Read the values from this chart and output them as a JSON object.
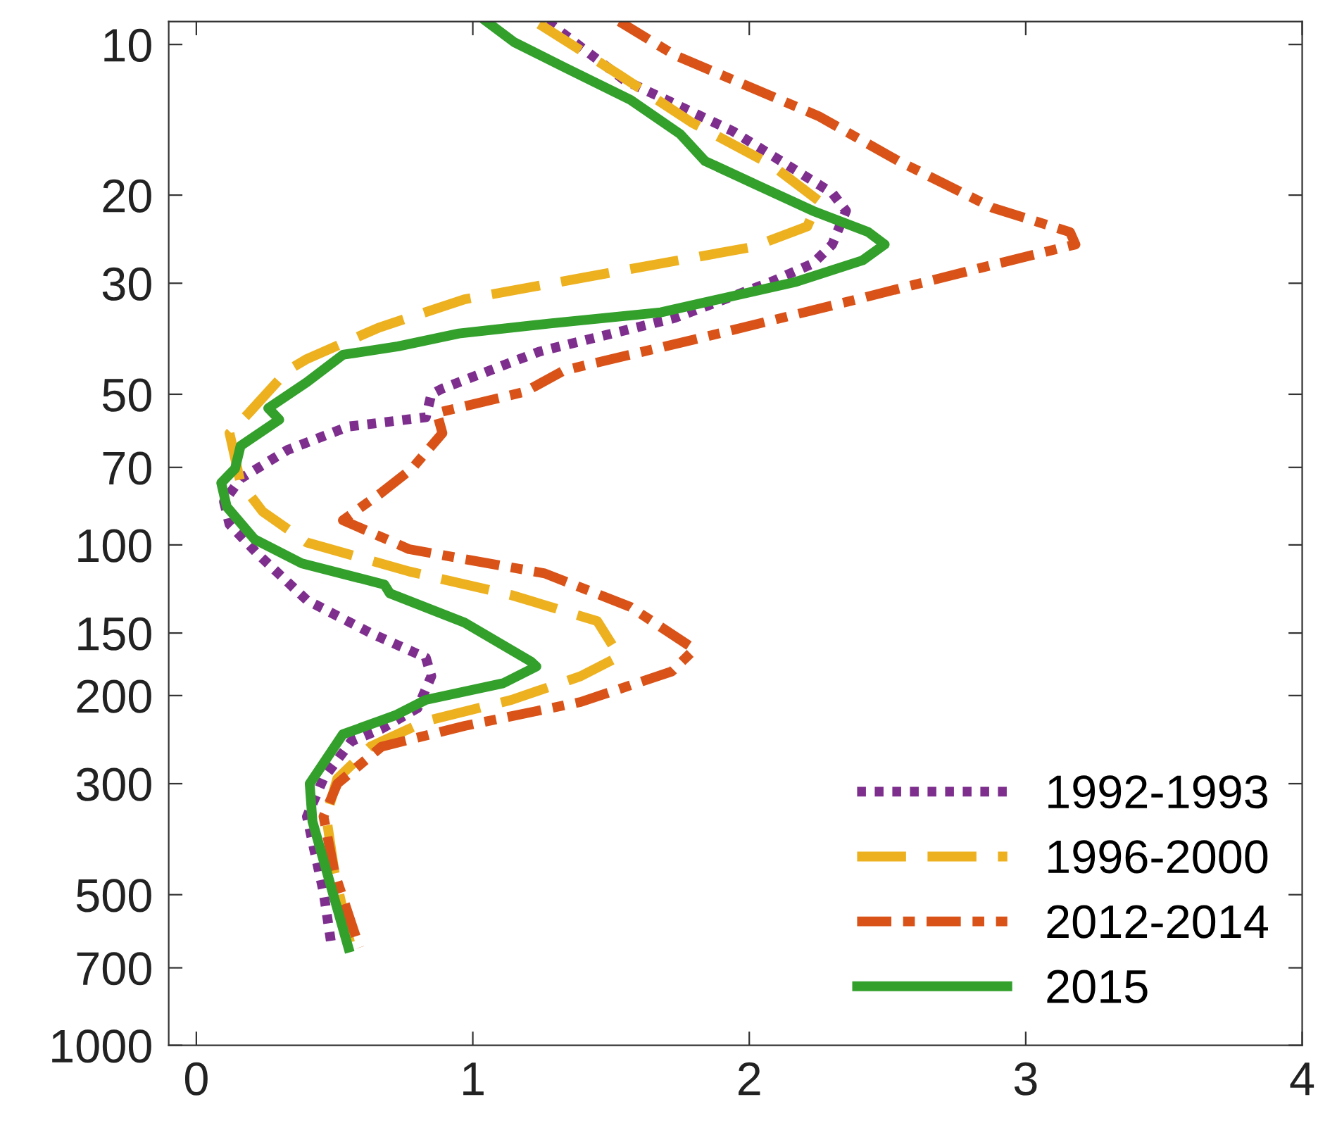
{
  "chart_data": {
    "type": "line",
    "log": "y",
    "xlim": [
      -0.1,
      4
    ],
    "ylim": [
      1000,
      9
    ],
    "xticks": [
      0,
      1,
      2,
      3,
      4
    ],
    "yticks": [
      10,
      20,
      30,
      50,
      70,
      100,
      150,
      200,
      300,
      500,
      700,
      1000
    ],
    "grid": false,
    "legend": "bottom right",
    "marker": "none",
    "series": [
      {
        "name": "1992-1993",
        "color": "#7e2f8e",
        "line_style": "dotted",
        "x": [
          1.27,
          1.55,
          1.94,
          2.3,
          2.35,
          2.3,
          2.23,
          2.08,
          1.73,
          1.24,
          0.89,
          0.85,
          0.83,
          0.55,
          0.33,
          0.16,
          0.1,
          0.12,
          0.22,
          0.4,
          0.63,
          0.83,
          0.85,
          0.8,
          0.67,
          0.56,
          0.46,
          0.4,
          0.46,
          0.49
        ],
        "values": [
          9,
          11.8,
          14.9,
          19.8,
          21.5,
          25.1,
          27.4,
          29.8,
          35.2,
          41.1,
          48.7,
          50,
          55.6,
          58,
          64.6,
          73.7,
          82,
          91,
          104,
          129,
          150,
          168,
          183,
          212,
          233,
          247,
          293,
          349,
          494,
          638
        ]
      },
      {
        "name": "1996-2000",
        "color": "#edb120",
        "line_style": "dashed",
        "x": [
          1.24,
          1.53,
          1.79,
          2.08,
          2.25,
          2.21,
          2.01,
          1.57,
          0.97,
          0.66,
          0.4,
          0.33,
          0.19,
          0.12,
          0.16,
          0.24,
          0.4,
          0.77,
          1.14,
          1.45,
          1.53,
          1.39,
          1.14,
          0.83,
          0.63,
          0.51,
          0.47,
          0.5,
          0.56
        ],
        "values": [
          9.1,
          11.5,
          14.3,
          17.4,
          20.5,
          23.1,
          25.4,
          28.1,
          32.3,
          36.8,
          42.5,
          44.8,
          54.5,
          59.8,
          75.2,
          85.8,
          98.9,
          113,
          126,
          142,
          167,
          183,
          204,
          225,
          253,
          293,
          349,
          452,
          638
        ]
      },
      {
        "name": "2012-2014",
        "color": "#d95319",
        "line_style": "dashdot",
        "x": [
          1.53,
          1.73,
          2.25,
          2.54,
          2.88,
          3.16,
          3.18,
          2.9,
          2.39,
          1.84,
          1.33,
          1.19,
          0.87,
          0.89,
          0.78,
          0.67,
          0.53,
          0.77,
          1.26,
          1.57,
          1.79,
          1.8,
          1.72,
          1.39,
          0.97,
          0.67,
          0.51,
          0.46,
          0.5,
          0.59
        ],
        "values": [
          9,
          10.5,
          13.9,
          17.1,
          21.2,
          23.7,
          25.1,
          27.4,
          32.3,
          38.4,
          44.8,
          49.4,
          54.5,
          59.8,
          70.4,
          78.6,
          89.3,
          102,
          114,
          133,
          160,
          162,
          179,
          206,
          230,
          253,
          300,
          349,
          452,
          638
        ]
      },
      {
        "name": "2015",
        "color": "#33a02c",
        "line_style": "solid",
        "x": [
          1.05,
          1.15,
          1.33,
          1.57,
          1.75,
          1.84,
          2.01,
          2.23,
          2.43,
          2.49,
          2.41,
          2.17,
          1.68,
          1.28,
          0.95,
          0.73,
          0.53,
          0.4,
          0.26,
          0.3,
          0.16,
          0.14,
          0.09,
          0.11,
          0.21,
          0.38,
          0.68,
          0.7,
          0.97,
          1.21,
          1.23,
          1.11,
          0.83,
          0.72,
          0.53,
          0.41,
          0.42,
          0.55
        ],
        "values": [
          9,
          9.9,
          11.1,
          12.9,
          15.1,
          17.1,
          18.9,
          21.5,
          23.7,
          25.1,
          27.0,
          29.8,
          34.3,
          36.1,
          37.8,
          40.1,
          41.7,
          47.3,
          53.3,
          56.2,
          63.4,
          70.4,
          75.2,
          83.9,
          97.4,
          108.8,
          120,
          125,
          143,
          171,
          175,
          189,
          204,
          219,
          239,
          300,
          357,
          638
        ]
      }
    ]
  }
}
